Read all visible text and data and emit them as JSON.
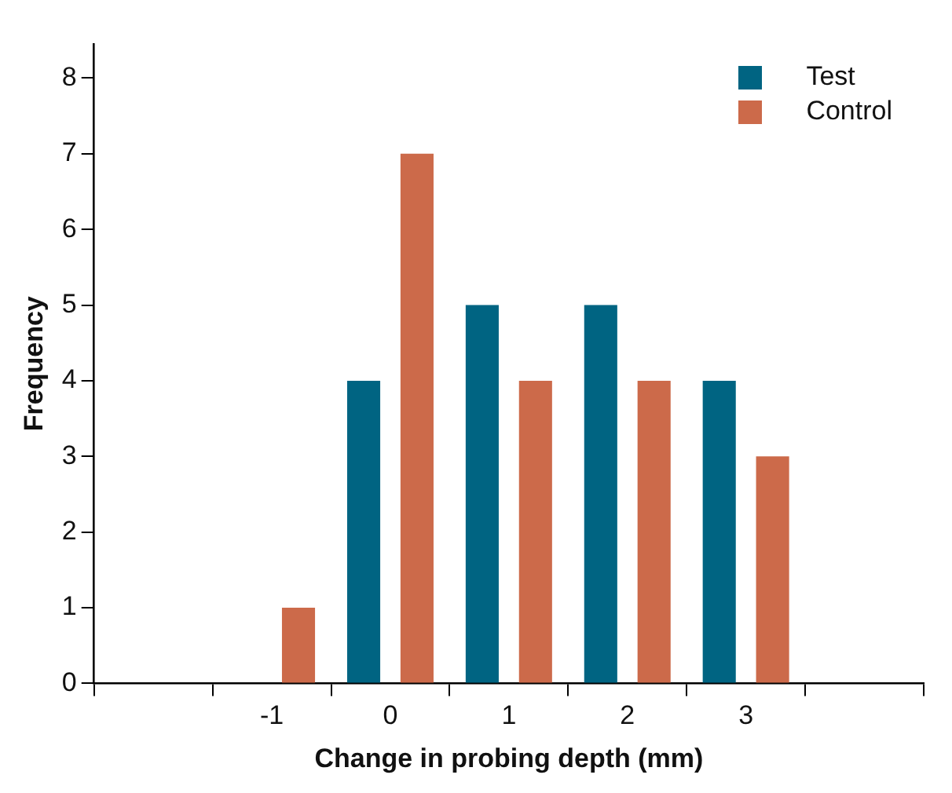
{
  "chart_data": {
    "type": "bar",
    "xlabel": "Change in probing depth (mm)",
    "ylabel": "Frequency",
    "categories": [
      null,
      "-1",
      "0",
      "1",
      "2",
      "3",
      null
    ],
    "series": [
      {
        "name": "Test",
        "color": "#006482",
        "values": [
          null,
          0,
          4,
          5,
          5,
          4,
          null
        ]
      },
      {
        "name": "Control",
        "color": "#cc6a4a",
        "values": [
          null,
          1,
          7,
          4,
          4,
          3,
          null
        ]
      }
    ],
    "ylim": [
      0,
      8.45
    ],
    "yticks": [
      0,
      1,
      2,
      3,
      4,
      5,
      6,
      7,
      8
    ],
    "grid": false,
    "legend": "top right"
  }
}
